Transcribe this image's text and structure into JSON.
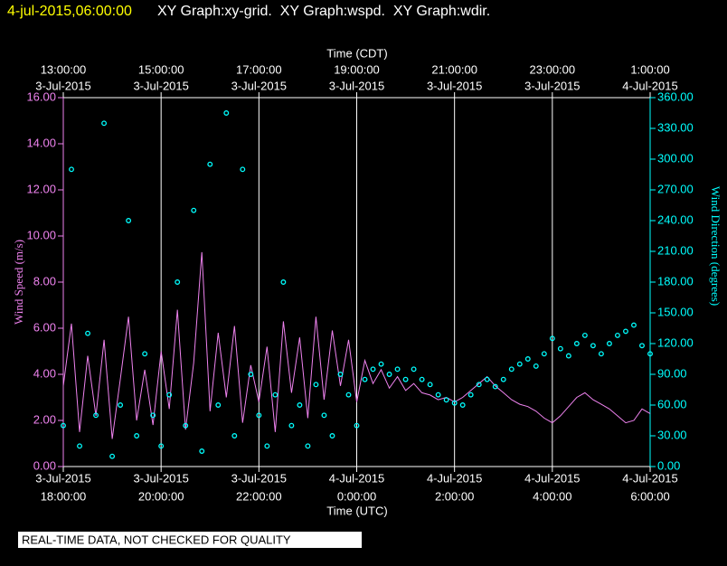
{
  "chart_data": {
    "type": "line",
    "timestamp": "4-jul-2015,06:00:00",
    "title": "XY Graph:xy-grid.  XY Graph:wspd.  XY Graph:wdir.",
    "x2label": "Time (CDT)",
    "xlabel": "Time (UTC)",
    "ylabel": "Wind Speed (m/s)",
    "y2label": "Wind Direction (degrees)",
    "note": "REAL-TIME DATA, NOT CHECKED FOR QUALITY",
    "grid": true,
    "xlim": [
      "2015-07-03T18:00",
      "2015-07-04T06:00"
    ],
    "xticks": [
      {
        "value": "2015-07-03T18:00",
        "label": [
          "3-Jul-2015",
          "18:00:00"
        ]
      },
      {
        "value": "2015-07-03T20:00",
        "label": [
          "3-Jul-2015",
          "20:00:00"
        ]
      },
      {
        "value": "2015-07-03T22:00",
        "label": [
          "3-Jul-2015",
          "22:00:00"
        ]
      },
      {
        "value": "2015-07-04T00:00",
        "label": [
          "4-Jul-2015",
          "0:00:00"
        ]
      },
      {
        "value": "2015-07-04T02:00",
        "label": [
          "4-Jul-2015",
          "2:00:00"
        ]
      },
      {
        "value": "2015-07-04T04:00",
        "label": [
          "4-Jul-2015",
          "4:00:00"
        ]
      },
      {
        "value": "2015-07-04T06:00",
        "label": [
          "4-Jul-2015",
          "6:00:00"
        ]
      }
    ],
    "x2ticks": [
      {
        "value": "2015-07-03T18:00",
        "label": [
          "13:00:00",
          "3-Jul-2015"
        ]
      },
      {
        "value": "2015-07-03T20:00",
        "label": [
          "15:00:00",
          "3-Jul-2015"
        ]
      },
      {
        "value": "2015-07-03T22:00",
        "label": [
          "17:00:00",
          "3-Jul-2015"
        ]
      },
      {
        "value": "2015-07-04T00:00",
        "label": [
          "19:00:00",
          "3-Jul-2015"
        ]
      },
      {
        "value": "2015-07-04T02:00",
        "label": [
          "21:00:00",
          "3-Jul-2015"
        ]
      },
      {
        "value": "2015-07-04T04:00",
        "label": [
          "23:00:00",
          "3-Jul-2015"
        ]
      },
      {
        "value": "2015-07-04T06:00",
        "label": [
          "1:00:00",
          "4-Jul-2015"
        ]
      }
    ],
    "ylim": [
      0,
      16
    ],
    "yticks": [
      {
        "value": 0,
        "label": "0.00"
      },
      {
        "value": 2,
        "label": "2.00"
      },
      {
        "value": 4,
        "label": "4.00"
      },
      {
        "value": 6,
        "label": "6.00"
      },
      {
        "value": 8,
        "label": "8.00"
      },
      {
        "value": 10,
        "label": "10.00"
      },
      {
        "value": 12,
        "label": "12.00"
      },
      {
        "value": 14,
        "label": "14.00"
      },
      {
        "value": 16,
        "label": "16.00"
      }
    ],
    "y2lim": [
      0,
      360
    ],
    "y2ticks": [
      {
        "value": 0,
        "label": "0.00"
      },
      {
        "value": 30,
        "label": "30.00"
      },
      {
        "value": 60,
        "label": "60.00"
      },
      {
        "value": 90,
        "label": "90.00"
      },
      {
        "value": 120,
        "label": "120.00"
      },
      {
        "value": 150,
        "label": "150.00"
      },
      {
        "value": 180,
        "label": "180.00"
      },
      {
        "value": 210,
        "label": "210.00"
      },
      {
        "value": 240,
        "label": "240.00"
      },
      {
        "value": 270,
        "label": "270.00"
      },
      {
        "value": 300,
        "label": "300.00"
      },
      {
        "value": 330,
        "label": "330.00"
      },
      {
        "value": 360,
        "label": "360.00"
      }
    ],
    "x": [
      "2015-07-03T18:00",
      "2015-07-03T18:10",
      "2015-07-03T18:20",
      "2015-07-03T18:30",
      "2015-07-03T18:40",
      "2015-07-03T18:50",
      "2015-07-03T19:00",
      "2015-07-03T19:10",
      "2015-07-03T19:20",
      "2015-07-03T19:30",
      "2015-07-03T19:40",
      "2015-07-03T19:50",
      "2015-07-03T20:00",
      "2015-07-03T20:10",
      "2015-07-03T20:20",
      "2015-07-03T20:30",
      "2015-07-03T20:40",
      "2015-07-03T20:50",
      "2015-07-03T21:00",
      "2015-07-03T21:10",
      "2015-07-03T21:20",
      "2015-07-03T21:30",
      "2015-07-03T21:40",
      "2015-07-03T21:50",
      "2015-07-03T22:00",
      "2015-07-03T22:10",
      "2015-07-03T22:20",
      "2015-07-03T22:30",
      "2015-07-03T22:40",
      "2015-07-03T22:50",
      "2015-07-03T23:00",
      "2015-07-03T23:10",
      "2015-07-03T23:20",
      "2015-07-03T23:30",
      "2015-07-03T23:40",
      "2015-07-03T23:50",
      "2015-07-04T00:00",
      "2015-07-04T00:10",
      "2015-07-04T00:20",
      "2015-07-04T00:30",
      "2015-07-04T00:40",
      "2015-07-04T00:50",
      "2015-07-04T01:00",
      "2015-07-04T01:10",
      "2015-07-04T01:20",
      "2015-07-04T01:30",
      "2015-07-04T01:40",
      "2015-07-04T01:50",
      "2015-07-04T02:00",
      "2015-07-04T02:10",
      "2015-07-04T02:20",
      "2015-07-04T02:30",
      "2015-07-04T02:40",
      "2015-07-04T02:50",
      "2015-07-04T03:00",
      "2015-07-04T03:10",
      "2015-07-04T03:20",
      "2015-07-04T03:30",
      "2015-07-04T03:40",
      "2015-07-04T03:50",
      "2015-07-04T04:00",
      "2015-07-04T04:10",
      "2015-07-04T04:20",
      "2015-07-04T04:30",
      "2015-07-04T04:40",
      "2015-07-04T04:50",
      "2015-07-04T05:00",
      "2015-07-04T05:10",
      "2015-07-04T05:20",
      "2015-07-04T05:30",
      "2015-07-04T05:40",
      "2015-07-04T05:50",
      "2015-07-04T06:00"
    ],
    "series": [
      {
        "name": "wspd",
        "mode": "line",
        "color": "#ee82ee",
        "axis": "y",
        "values": [
          3.5,
          6.2,
          1.5,
          4.8,
          2.2,
          5.5,
          1.2,
          3.8,
          6.5,
          2.0,
          4.2,
          1.8,
          5.0,
          2.5,
          6.8,
          1.6,
          4.5,
          9.3,
          2.4,
          5.8,
          3.0,
          6.1,
          1.9,
          4.4,
          2.8,
          5.2,
          1.5,
          6.3,
          3.2,
          5.6,
          2.1,
          6.5,
          2.9,
          5.9,
          3.5,
          5.5,
          2.8,
          4.6,
          3.6,
          4.2,
          3.4,
          3.9,
          3.3,
          3.6,
          3.2,
          3.1,
          2.9,
          3.0,
          2.8,
          3.0,
          3.3,
          3.6,
          3.9,
          3.5,
          3.2,
          2.9,
          2.7,
          2.6,
          2.4,
          2.1,
          1.9,
          2.2,
          2.6,
          3.0,
          3.2,
          2.9,
          2.7,
          2.5,
          2.2,
          1.9,
          2.0,
          2.5,
          2.3
        ]
      },
      {
        "name": "wdir",
        "mode": "markers",
        "color": "#00ffff",
        "axis": "y2",
        "values": [
          40,
          290,
          20,
          130,
          50,
          335,
          10,
          60,
          240,
          30,
          110,
          50,
          20,
          70,
          180,
          40,
          250,
          15,
          295,
          60,
          345,
          30,
          290,
          90,
          50,
          20,
          70,
          180,
          40,
          60,
          20,
          80,
          50,
          30,
          90,
          70,
          40,
          85,
          95,
          100,
          90,
          95,
          85,
          95,
          85,
          80,
          70,
          65,
          62,
          60,
          70,
          80,
          85,
          78,
          85,
          95,
          100,
          105,
          98,
          110,
          125,
          115,
          108,
          120,
          128,
          118,
          110,
          120,
          128,
          132,
          138,
          118,
          110
        ]
      }
    ]
  }
}
